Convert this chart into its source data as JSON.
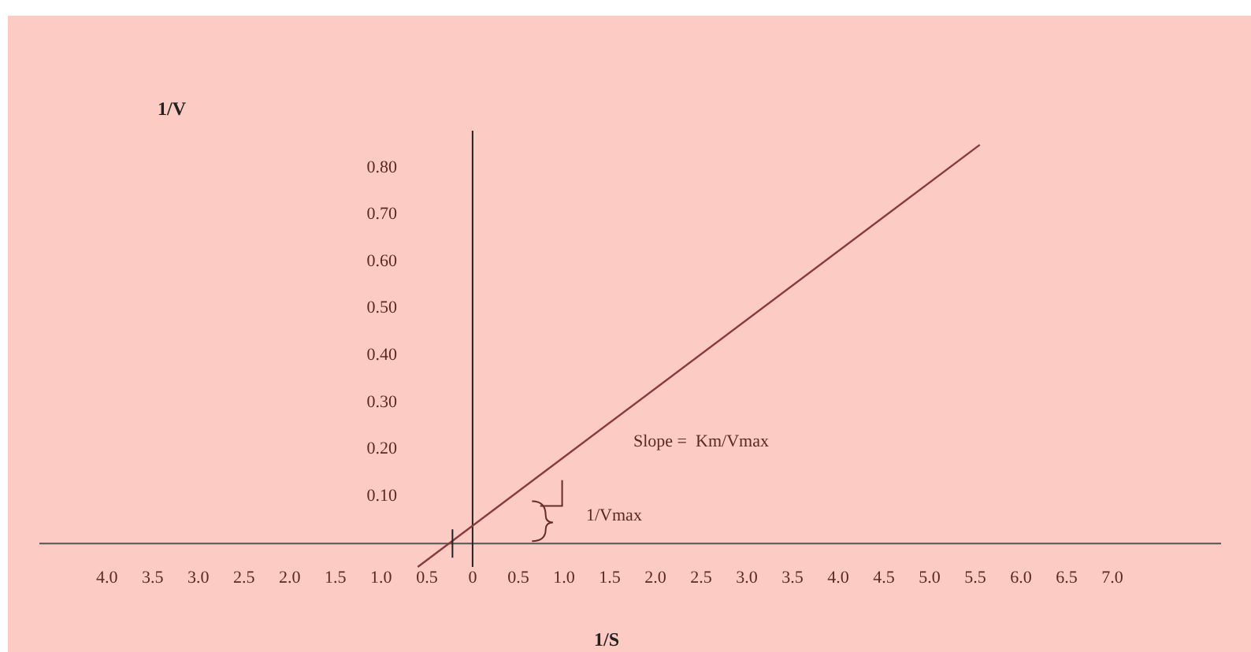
{
  "chart_data": {
    "type": "line",
    "xlabel": "1/S",
    "ylabel": "1/V",
    "xlim": [
      -4.74,
      8.19
    ],
    "ylim": [
      -0.05,
      0.88
    ],
    "xticks": [
      {
        "value": -4,
        "label": "4.0"
      },
      {
        "value": -3.5,
        "label": "3.5"
      },
      {
        "value": -3,
        "label": "3.0"
      },
      {
        "value": -2.5,
        "label": "2.5"
      },
      {
        "value": -2,
        "label": "2.0"
      },
      {
        "value": -1.5,
        "label": "1.5"
      },
      {
        "value": -1,
        "label": "1.0"
      },
      {
        "value": -0.5,
        "label": "0.5"
      },
      0,
      {
        "value": 0.5,
        "label": "0.5"
      },
      {
        "value": 1,
        "label": "1.0"
      },
      {
        "value": 1.5,
        "label": "1.5"
      },
      {
        "value": 2,
        "label": "2.0"
      },
      {
        "value": 2.5,
        "label": "2.5"
      },
      {
        "value": 3,
        "label": "3.0"
      },
      {
        "value": 3.5,
        "label": "3.5"
      },
      {
        "value": 4,
        "label": "4.0"
      },
      {
        "value": 4.5,
        "label": "4.5"
      },
      {
        "value": 5,
        "label": "5.0"
      },
      {
        "value": 5.5,
        "label": "5.5"
      },
      {
        "value": 6,
        "label": "6.0"
      },
      {
        "value": 6.5,
        "label": "6.5"
      },
      {
        "value": 7,
        "label": "7.0"
      }
    ],
    "yticks": [
      {
        "value": 0.1,
        "label": "0.10"
      },
      {
        "value": 0.2,
        "label": "0.20"
      },
      {
        "value": 0.3,
        "label": "0.30"
      },
      {
        "value": 0.4,
        "label": "0.40"
      },
      {
        "value": 0.5,
        "label": "0.50"
      },
      {
        "value": 0.6,
        "label": "0.60"
      },
      {
        "value": 0.7,
        "label": "0.70"
      },
      {
        "value": 0.8,
        "label": "0.80"
      }
    ],
    "series": [
      {
        "color": "#8b3a3a",
        "x": [
          -0.6,
          5.55
        ],
        "values": [
          -0.05,
          0.85
        ]
      }
    ],
    "annotations": [
      "Slope =  Km/Vmax",
      "1/Vmax"
    ],
    "marker": "none",
    "line_style": "solid"
  }
}
